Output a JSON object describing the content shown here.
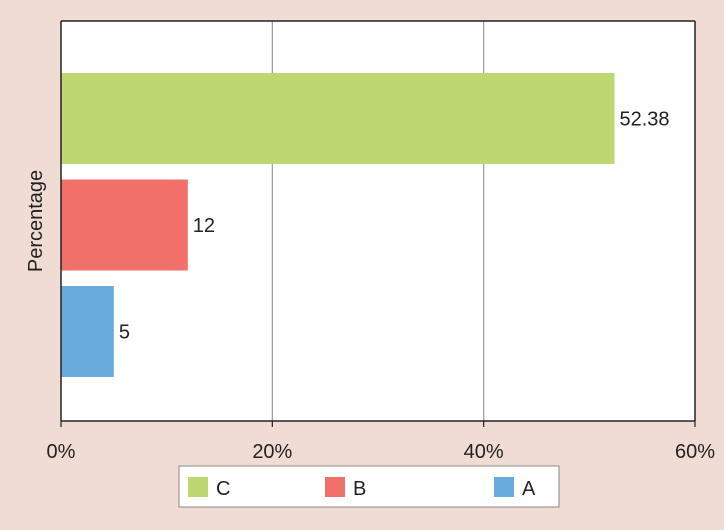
{
  "chart_data": {
    "type": "bar",
    "orientation": "horizontal",
    "title": "",
    "xlabel": "",
    "ylabel": "Percentage",
    "xlim": [
      0,
      60
    ],
    "xticks": [
      0,
      20,
      40,
      60
    ],
    "tick_suffix": "%",
    "grid": "vertical",
    "legend_position": "bottom",
    "series": [
      {
        "name": "C",
        "value": 52.38,
        "data_label": "52.38",
        "color": "#bdd870"
      },
      {
        "name": "B",
        "value": 12,
        "data_label": "12",
        "color": "#f2706a"
      },
      {
        "name": "A",
        "value": 5,
        "data_label": "5",
        "color": "#6aabdd"
      }
    ]
  },
  "colors": {
    "page_background": "#f0dcd4",
    "plot_background": "#ffffff",
    "gridline": "#999999"
  }
}
